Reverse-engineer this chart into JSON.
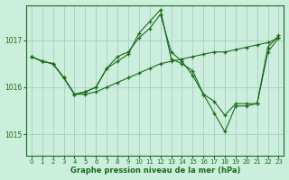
{
  "title": "Graphe pression niveau de la mer (hPa)",
  "bg_color": "#cceedd",
  "line_color": "#1a6b1a",
  "grid_color": "#aacccc",
  "xlim": [
    -0.5,
    23.5
  ],
  "ylim": [
    1014.55,
    1017.75
  ],
  "yticks": [
    1015,
    1016,
    1017
  ],
  "xticks": [
    0,
    1,
    2,
    3,
    4,
    5,
    6,
    7,
    8,
    9,
    10,
    11,
    12,
    13,
    14,
    15,
    16,
    17,
    18,
    19,
    20,
    21,
    22,
    23
  ],
  "series": [
    [
      1016.65,
      1016.55,
      1016.5,
      1016.2,
      1015.85,
      1015.9,
      1016.0,
      1016.4,
      1016.65,
      1016.75,
      1017.05,
      1017.25,
      1017.55,
      1016.75,
      1016.55,
      1016.25,
      1015.85,
      1015.45,
      1015.05,
      1015.6,
      1015.6,
      1015.65,
      1016.85,
      1017.1
    ],
    [
      1016.65,
      1016.55,
      1016.5,
      1016.2,
      1015.85,
      1015.9,
      1016.0,
      1016.4,
      1016.55,
      1016.7,
      1017.15,
      1017.4,
      1017.65,
      1016.6,
      1016.5,
      1016.35,
      1015.85,
      1015.7,
      1015.4,
      1015.65,
      1015.65,
      1015.65,
      1016.75,
      1017.05
    ],
    [
      1016.65,
      1016.55,
      1016.5,
      1016.2,
      1015.85,
      1015.85,
      1015.9,
      1016.0,
      1016.1,
      1016.2,
      1016.3,
      1016.4,
      1016.5,
      1016.55,
      1016.6,
      1016.65,
      1016.7,
      1016.75,
      1016.75,
      1016.8,
      1016.85,
      1016.9,
      1016.95,
      1017.05
    ]
  ]
}
